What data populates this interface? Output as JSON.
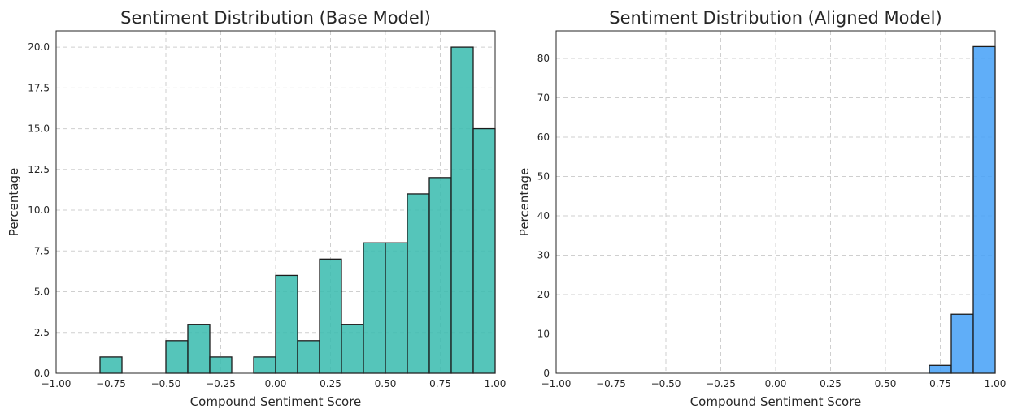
{
  "chart_data": [
    {
      "type": "bar",
      "title": "Sentiment Distribution (Base Model)",
      "xlabel": "Compound Sentiment Score",
      "ylabel": "Percentage",
      "xlim": [
        -1.0,
        1.0
      ],
      "ylim": [
        0,
        21
      ],
      "bin_width": 0.1,
      "xticks": [
        -1.0,
        -0.75,
        -0.5,
        -0.25,
        0.0,
        0.25,
        0.5,
        0.75,
        1.0
      ],
      "xtick_labels": [
        "−1.00",
        "−0.75",
        "−0.50",
        "−0.25",
        "0.00",
        "0.25",
        "0.50",
        "0.75",
        "1.00"
      ],
      "yticks": [
        0,
        2.5,
        5,
        7.5,
        10,
        12.5,
        15,
        17.5,
        20
      ],
      "ytick_labels": [
        "0.0",
        "2.5",
        "5.0",
        "7.5",
        "10.0",
        "12.5",
        "15.0",
        "17.5",
        "20.0"
      ],
      "color": "#3dbdb0",
      "grid": true,
      "bins": [
        {
          "x0": -0.8,
          "x1": -0.7,
          "value": 1
        },
        {
          "x0": -0.5,
          "x1": -0.4,
          "value": 2
        },
        {
          "x0": -0.4,
          "x1": -0.3,
          "value": 3
        },
        {
          "x0": -0.3,
          "x1": -0.2,
          "value": 1
        },
        {
          "x0": -0.1,
          "x1": 0.0,
          "value": 1
        },
        {
          "x0": 0.0,
          "x1": 0.1,
          "value": 6
        },
        {
          "x0": 0.1,
          "x1": 0.2,
          "value": 2
        },
        {
          "x0": 0.2,
          "x1": 0.3,
          "value": 7
        },
        {
          "x0": 0.3,
          "x1": 0.4,
          "value": 3
        },
        {
          "x0": 0.4,
          "x1": 0.5,
          "value": 8
        },
        {
          "x0": 0.5,
          "x1": 0.6,
          "value": 8
        },
        {
          "x0": 0.6,
          "x1": 0.7,
          "value": 11
        },
        {
          "x0": 0.7,
          "x1": 0.8,
          "value": 12
        },
        {
          "x0": 0.8,
          "x1": 0.9,
          "value": 20
        },
        {
          "x0": 0.9,
          "x1": 1.0,
          "value": 15
        }
      ]
    },
    {
      "type": "bar",
      "title": "Sentiment Distribution (Aligned Model)",
      "xlabel": "Compound Sentiment Score",
      "ylabel": "Percentage",
      "xlim": [
        -1.0,
        1.0
      ],
      "ylim": [
        0,
        87
      ],
      "bin_width": 0.1,
      "xticks": [
        -1.0,
        -0.75,
        -0.5,
        -0.25,
        0.0,
        0.25,
        0.5,
        0.75,
        1.0
      ],
      "xtick_labels": [
        "−1.00",
        "−0.75",
        "−0.50",
        "−0.25",
        "0.00",
        "0.25",
        "0.50",
        "0.75",
        "1.00"
      ],
      "yticks": [
        0,
        10,
        20,
        30,
        40,
        50,
        60,
        70,
        80
      ],
      "ytick_labels": [
        "0",
        "10",
        "20",
        "30",
        "40",
        "50",
        "60",
        "70",
        "80"
      ],
      "color": "#4aa3f7",
      "grid": true,
      "bins": [
        {
          "x0": 0.7,
          "x1": 0.8,
          "value": 2
        },
        {
          "x0": 0.8,
          "x1": 0.9,
          "value": 15
        },
        {
          "x0": 0.9,
          "x1": 1.0,
          "value": 83
        }
      ]
    }
  ]
}
